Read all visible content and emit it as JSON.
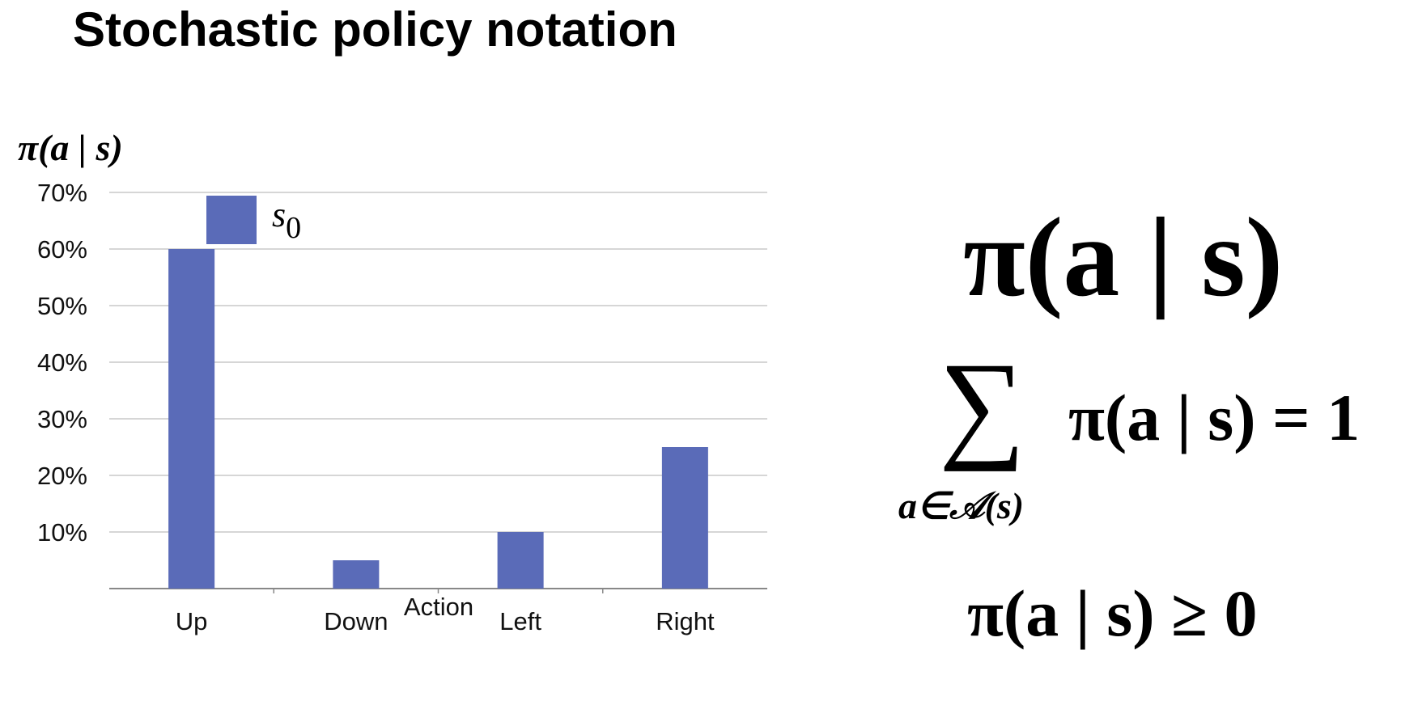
{
  "title": "Stochastic policy notation",
  "chart_data": {
    "type": "bar",
    "categories": [
      "Up",
      "Down",
      "Left",
      "Right"
    ],
    "series": [
      {
        "name": "s0",
        "values": [
          60,
          5,
          10,
          25
        ]
      }
    ],
    "ylabel": "π(a | s)",
    "xlabel": "Action",
    "ylim": [
      0,
      70
    ],
    "yticks": [
      "10%",
      "20%",
      "30%",
      "40%",
      "50%",
      "60%",
      "70%"
    ],
    "grid": true,
    "legend_placement": "top-left",
    "bar_color": "#5a6bb8"
  },
  "legend": {
    "symbol": "s",
    "subscript": "0"
  },
  "equations": {
    "main": "π(a | s)",
    "sum_sigma": "∑",
    "sum_subscript": "a∈𝒜(s)",
    "sum_rhs": "π(a | s) = 1",
    "nonneg": "π(a | s) ≥ 0"
  }
}
